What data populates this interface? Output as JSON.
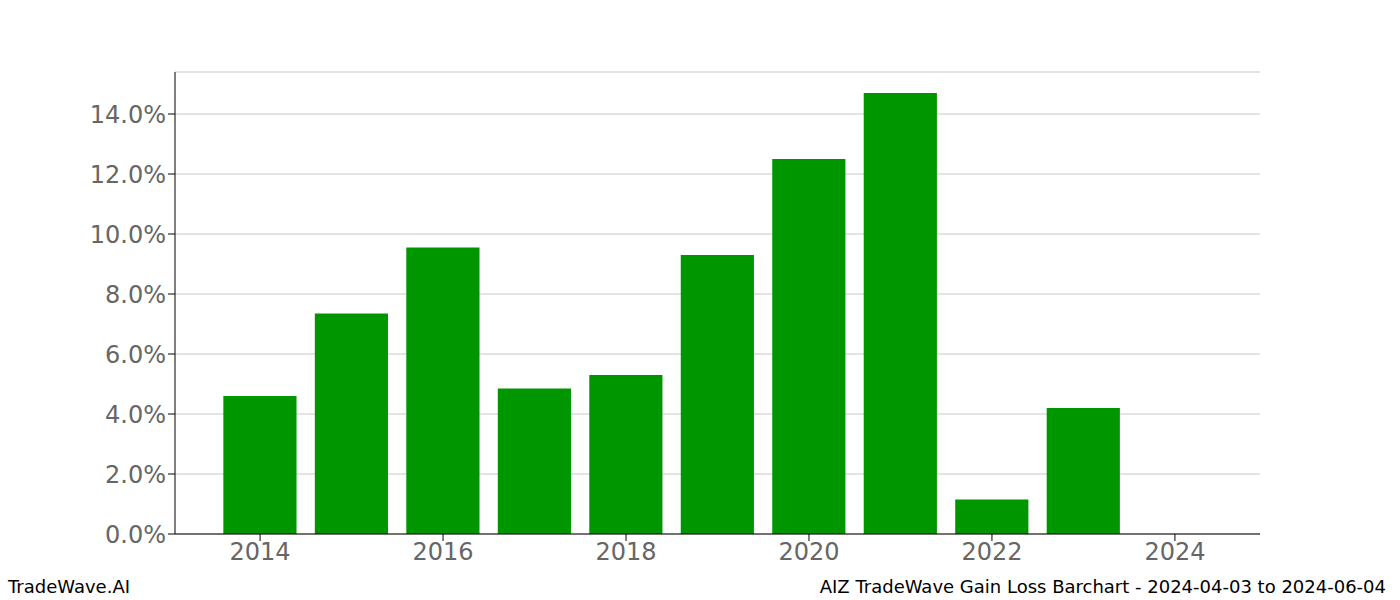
{
  "chart_data": {
    "type": "bar",
    "title": "AIZ TradeWave Gain Loss Barchart - 2024-04-03 to 2024-06-04",
    "annotations": [
      "TradeWave.AI"
    ],
    "x": [
      2014,
      2015,
      2016,
      2017,
      2018,
      2019,
      2020,
      2021,
      2022,
      2023
    ],
    "values": [
      4.6,
      7.35,
      9.55,
      4.85,
      5.3,
      9.3,
      12.5,
      14.7,
      1.15,
      4.2
    ],
    "color": "#009600",
    "xlim": [
      2013.07,
      2024.93
    ],
    "xticks": [
      2014,
      2016,
      2018,
      2020,
      2022,
      2024
    ],
    "ylim": [
      0,
      15.4
    ],
    "yticks": [
      {
        "value": 0,
        "label": "0.0%"
      },
      {
        "value": 2,
        "label": "2.0%"
      },
      {
        "value": 4,
        "label": "4.0%"
      },
      {
        "value": 6,
        "label": "6.0%"
      },
      {
        "value": 8,
        "label": "8.0%"
      },
      {
        "value": 10,
        "label": "10.0%"
      },
      {
        "value": 12,
        "label": "12.0%"
      },
      {
        "value": 14,
        "label": "14.0%"
      }
    ],
    "grid": true
  }
}
